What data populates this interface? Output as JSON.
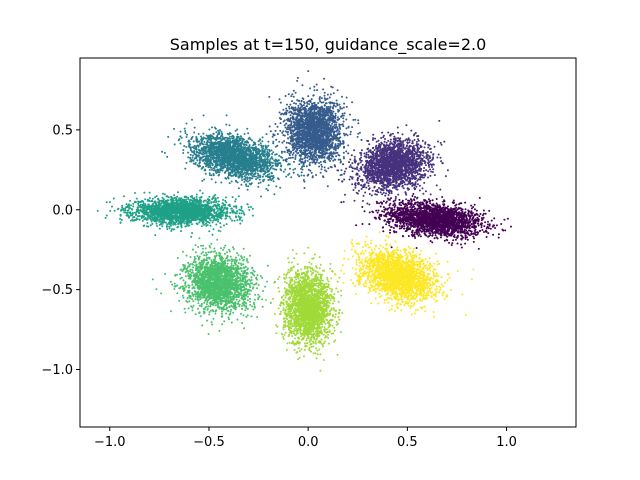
{
  "chart_data": {
    "type": "scatter",
    "title": "Samples at t=150, guidance_scale=2.0",
    "xlabel": "",
    "ylabel": "",
    "xlim": [
      -1.15,
      1.35
    ],
    "ylim": [
      -1.36,
      0.95
    ],
    "grid": false,
    "legend": "none",
    "x_ticks": [
      {
        "value": -1.0,
        "label": "−1.0"
      },
      {
        "value": -0.5,
        "label": "−0.5"
      },
      {
        "value": 0.0,
        "label": "0.0"
      },
      {
        "value": 0.5,
        "label": "0.5"
      },
      {
        "value": 1.0,
        "label": "1.0"
      }
    ],
    "y_ticks": [
      {
        "value": 0.5,
        "label": "0.5"
      },
      {
        "value": 0.0,
        "label": "0.0"
      },
      {
        "value": -0.5,
        "label": "−0.5"
      },
      {
        "value": -1.0,
        "label": "−1.0"
      }
    ],
    "series": [
      {
        "color": "#440154",
        "center": [
          0.64,
          -0.06
        ],
        "spread": [
          0.12,
          0.05
        ],
        "rotation_deg": -10,
        "count": 2200
      },
      {
        "color": "#46327e",
        "center": [
          0.43,
          0.28
        ],
        "spread": [
          0.09,
          0.07
        ],
        "rotation_deg": 25,
        "count": 2200
      },
      {
        "color": "#365c8d",
        "center": [
          0.03,
          0.49
        ],
        "spread": [
          0.07,
          0.1
        ],
        "rotation_deg": 0,
        "count": 2200
      },
      {
        "color": "#277f8e",
        "center": [
          -0.37,
          0.33
        ],
        "spread": [
          0.11,
          0.06
        ],
        "rotation_deg": -20,
        "count": 2200
      },
      {
        "color": "#1fa187",
        "center": [
          -0.64,
          -0.01
        ],
        "spread": [
          0.12,
          0.04
        ],
        "rotation_deg": 0,
        "count": 2200
      },
      {
        "color": "#4ac16d",
        "center": [
          -0.45,
          -0.46
        ],
        "spread": [
          0.08,
          0.09
        ],
        "rotation_deg": 30,
        "count": 2200
      },
      {
        "color": "#a0da39",
        "center": [
          0.0,
          -0.61
        ],
        "spread": [
          0.06,
          0.11
        ],
        "rotation_deg": 0,
        "count": 2200
      },
      {
        "color": "#fde725",
        "center": [
          0.45,
          -0.41
        ],
        "spread": [
          0.1,
          0.07
        ],
        "rotation_deg": -30,
        "count": 2200
      }
    ]
  }
}
